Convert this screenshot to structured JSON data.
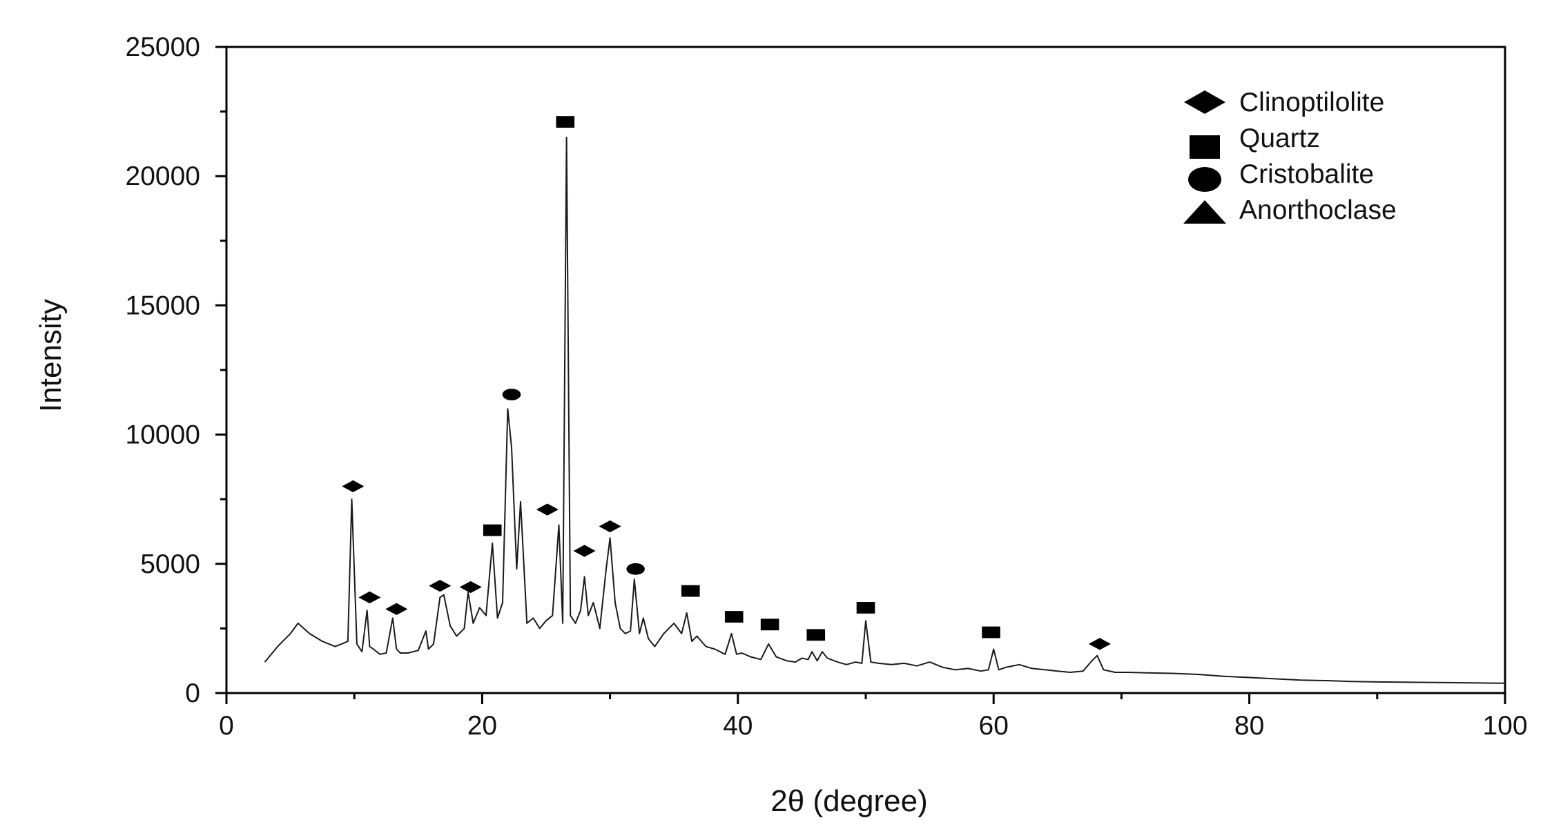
{
  "chart_data": {
    "type": "line",
    "title": "",
    "xlabel": "2θ (degree)",
    "ylabel": "Intensity",
    "xlim": [
      0,
      100
    ],
    "ylim": [
      0,
      25000
    ],
    "xticks": [
      0,
      20,
      40,
      60,
      80,
      100
    ],
    "yticks": [
      0,
      5000,
      10000,
      15000,
      20000,
      25000
    ],
    "grid": false,
    "legend_position": "top-right",
    "colors": {
      "line": "#1a1a1a",
      "markers": "#000000",
      "axes": "#000000"
    },
    "legend": [
      {
        "label": "Clinoptilolite",
        "marker": "diamond"
      },
      {
        "label": "Quartz",
        "marker": "square"
      },
      {
        "label": "Cristobalite",
        "marker": "circle"
      },
      {
        "label": "Anorthoclase",
        "marker": "triangle"
      }
    ],
    "series": [
      {
        "x": [
          3,
          4,
          5,
          5.6,
          6.5,
          7.5,
          8.5,
          9.0,
          9.5,
          9.8,
          10.2,
          10.6,
          11.0,
          11.2,
          11.5,
          12.0,
          12.5,
          13.0,
          13.3,
          13.6,
          14.2,
          15.0,
          15.6,
          15.8,
          16.2,
          16.7,
          17.0,
          17.5,
          18.0,
          18.6,
          18.9,
          19.3,
          19.8,
          20.3,
          20.8,
          21.2,
          21.6,
          22.0,
          22.3,
          22.7,
          23.0,
          23.5,
          24.0,
          24.5,
          25.0,
          25.5,
          26.0,
          26.3,
          26.6,
          26.9,
          27.3,
          27.7,
          28.0,
          28.3,
          28.7,
          29.2,
          29.7,
          30.0,
          30.4,
          30.8,
          31.2,
          31.6,
          31.9,
          32.3,
          32.6,
          33.0,
          33.5,
          34.2,
          35.0,
          35.6,
          36.0,
          36.4,
          36.8,
          37.5,
          38.2,
          39.0,
          39.5,
          39.9,
          40.3,
          41.0,
          41.8,
          42.4,
          43.0,
          43.8,
          44.5,
          45.0,
          45.5,
          45.8,
          46.2,
          46.6,
          47.0,
          47.8,
          48.5,
          49.2,
          49.7,
          50.0,
          50.4,
          51.0,
          52.0,
          53.0,
          54.0,
          55.0,
          56.0,
          57.0,
          58.0,
          59.0,
          59.6,
          60.0,
          60.4,
          61.0,
          62.0,
          63.0,
          64.0,
          65.0,
          66.0,
          67.0,
          67.6,
          68.1,
          68.6,
          69.5,
          70.5,
          72.0,
          74.0,
          76.0,
          78.0,
          80.0,
          82.0,
          84.0,
          86.0,
          88.0,
          90.0,
          92.0,
          94.0,
          96.0,
          98.0,
          100.0
        ],
        "values": [
          1200,
          1800,
          2300,
          2700,
          2300,
          2000,
          1800,
          1900,
          2000,
          7500,
          1900,
          1600,
          3200,
          1800,
          1700,
          1500,
          1550,
          2900,
          1700,
          1550,
          1550,
          1650,
          2400,
          1700,
          1900,
          3700,
          3800,
          2600,
          2200,
          2500,
          3900,
          2700,
          3300,
          3000,
          5800,
          2900,
          3500,
          11000,
          9500,
          4800,
          7400,
          2700,
          2900,
          2500,
          2800,
          3000,
          6500,
          2700,
          21500,
          3000,
          2700,
          3200,
          4500,
          3000,
          3500,
          2500,
          4800,
          6000,
          3500,
          2500,
          2300,
          2400,
          4400,
          2300,
          2900,
          2100,
          1800,
          2300,
          2700,
          2300,
          3100,
          2000,
          2200,
          1800,
          1700,
          1500,
          2300,
          1500,
          1550,
          1400,
          1300,
          1900,
          1400,
          1250,
          1200,
          1350,
          1300,
          1600,
          1250,
          1600,
          1350,
          1200,
          1100,
          1200,
          1150,
          2800,
          1200,
          1150,
          1100,
          1150,
          1050,
          1200,
          1000,
          900,
          950,
          850,
          900,
          1700,
          900,
          1000,
          1100,
          950,
          900,
          850,
          800,
          850,
          1200,
          1450,
          900,
          800,
          800,
          780,
          760,
          720,
          650,
          600,
          550,
          500,
          480,
          450,
          430,
          420,
          410,
          400,
          390,
          380
        ]
      }
    ],
    "annotations": [
      {
        "marker": "diamond",
        "x": 9.9,
        "y": 8000
      },
      {
        "marker": "diamond",
        "x": 11.2,
        "y": 3700
      },
      {
        "marker": "diamond",
        "x": 13.3,
        "y": 3250
      },
      {
        "marker": "diamond",
        "x": 16.7,
        "y": 4150
      },
      {
        "marker": "diamond",
        "x": 19.1,
        "y": 4100
      },
      {
        "marker": "square",
        "x": 20.8,
        "y": 6300
      },
      {
        "marker": "circle",
        "x": 22.3,
        "y": 11550
      },
      {
        "marker": "diamond",
        "x": 25.1,
        "y": 7100
      },
      {
        "marker": "square",
        "x": 26.5,
        "y": 22100
      },
      {
        "marker": "diamond",
        "x": 28.0,
        "y": 5500
      },
      {
        "marker": "diamond",
        "x": 30.0,
        "y": 6450
      },
      {
        "marker": "circle",
        "x": 32.0,
        "y": 4800
      },
      {
        "marker": "square",
        "x": 36.3,
        "y": 3950
      },
      {
        "marker": "square",
        "x": 39.7,
        "y": 2950
      },
      {
        "marker": "square",
        "x": 42.5,
        "y": 2650
      },
      {
        "marker": "square",
        "x": 46.1,
        "y": 2250
      },
      {
        "marker": "square",
        "x": 50.0,
        "y": 3300
      },
      {
        "marker": "square",
        "x": 59.8,
        "y": 2350
      },
      {
        "marker": "diamond",
        "x": 68.3,
        "y": 1900
      }
    ]
  }
}
